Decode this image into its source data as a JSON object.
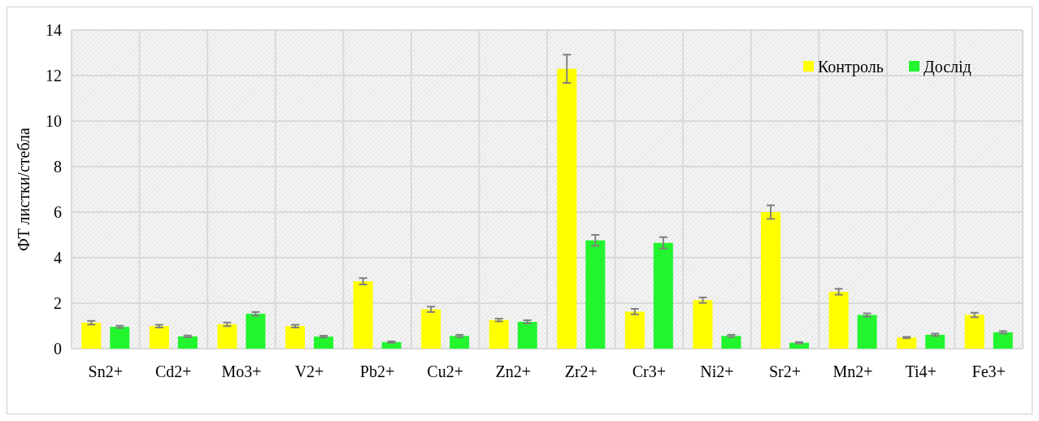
{
  "chart_data": {
    "type": "bar",
    "ylabel": "ФТ листки/стебла",
    "categories": [
      "Sn2+",
      "Cd2+",
      "Mo3+",
      "V2+",
      "Pb2+",
      "Cu2+",
      "Zn2+",
      "Zr2+",
      "Cr3+",
      "Ni2+",
      "Sr2+",
      "Mn2+",
      "Ti4+",
      "Fe3+"
    ],
    "series": [
      {
        "name": "Контроль",
        "color": "#ffff00",
        "values": [
          1.14,
          0.99,
          1.07,
          0.99,
          2.96,
          1.73,
          1.26,
          12.3,
          1.63,
          2.13,
          6.0,
          2.5,
          0.49,
          1.48
        ],
        "errors": [
          0.08,
          0.06,
          0.08,
          0.06,
          0.14,
          0.12,
          0.06,
          0.62,
          0.12,
          0.12,
          0.3,
          0.13,
          0.03,
          0.1
        ]
      },
      {
        "name": "Дослід",
        "color": "#22f52e",
        "values": [
          0.96,
          0.54,
          1.53,
          0.53,
          0.29,
          0.56,
          1.18,
          4.76,
          4.65,
          0.56,
          0.26,
          1.48,
          0.61,
          0.72
        ],
        "errors": [
          0.05,
          0.04,
          0.08,
          0.04,
          0.03,
          0.05,
          0.07,
          0.24,
          0.25,
          0.05,
          0.03,
          0.07,
          0.05,
          0.05
        ]
      }
    ],
    "ylim": [
      0,
      14
    ],
    "yticks": [
      0,
      2,
      4,
      6,
      8,
      10,
      12,
      14
    ],
    "grid": true,
    "legend": "top right"
  }
}
